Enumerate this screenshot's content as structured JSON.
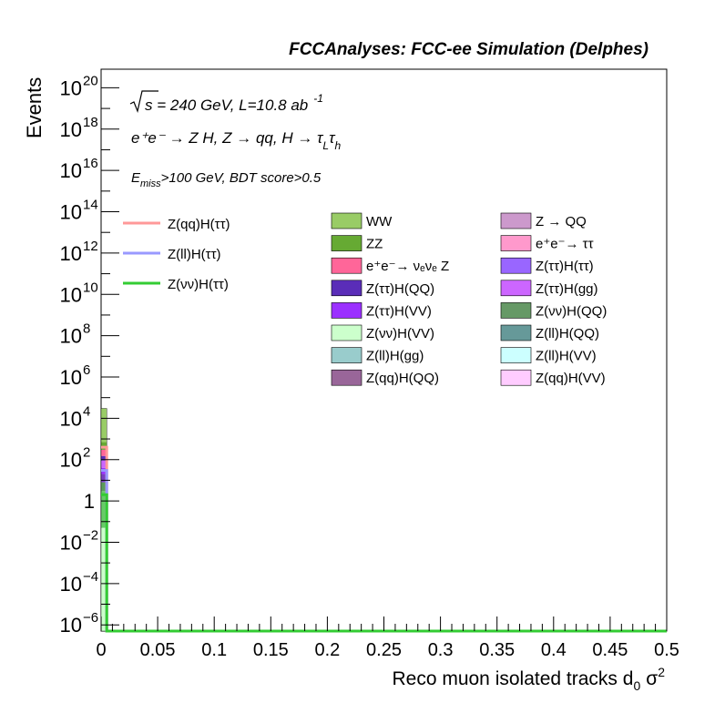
{
  "chart_data": {
    "type": "bar",
    "title": "FCCAnalyses: FCC-ee Simulation (Delphes)",
    "xlabel": "Reco muon isolated tracks d",
    "xlabel_sub": "0",
    "xlabel_tail": "σ",
    "xlabel_sup": "2",
    "ylabel": "Events",
    "xlim": [
      0,
      0.5
    ],
    "ylim_log10": [
      -6.3,
      20.9
    ],
    "y_scale": "log",
    "x_ticks": [
      "0",
      "0.05",
      "0.1",
      "0.15",
      "0.2",
      "0.25",
      "0.3",
      "0.35",
      "0.4",
      "0.45",
      "0.5"
    ],
    "y_ticks": [
      {
        "exp": -6,
        "base": "10",
        "sup": "−6"
      },
      {
        "exp": -4,
        "base": "10",
        "sup": "−4"
      },
      {
        "exp": -2,
        "base": "10",
        "sup": "−2"
      },
      {
        "exp": 0,
        "base": "1",
        "sup": ""
      },
      {
        "exp": 2,
        "base": "10",
        "sup": "2"
      },
      {
        "exp": 4,
        "base": "10",
        "sup": "4"
      },
      {
        "exp": 6,
        "base": "10",
        "sup": "6"
      },
      {
        "exp": 8,
        "base": "10",
        "sup": "8"
      },
      {
        "exp": 10,
        "base": "10",
        "sup": "10"
      },
      {
        "exp": 12,
        "base": "10",
        "sup": "12"
      },
      {
        "exp": 14,
        "base": "10",
        "sup": "14"
      },
      {
        "exp": 16,
        "base": "10",
        "sup": "16"
      },
      {
        "exp": 18,
        "base": "10",
        "sup": "18"
      },
      {
        "exp": 20,
        "base": "10",
        "sup": "20"
      }
    ],
    "annotations": {
      "sqrt_s": "s",
      "energy_line": " = 240 GeV, L=10.8 ab",
      "lumi_sup": "-1",
      "process_line": "e⁺e⁻ → Z H, Z → qq, H → τ",
      "process_sub1": "L",
      "process_tau2": "τ",
      "process_sub2": "h",
      "selection_E": "E",
      "selection_sub": "miss",
      "selection_rest": ">100 GeV, BDT score>0.5"
    },
    "bin_width": 0.005,
    "stacked_bins": [
      {
        "x": 0.0,
        "total": 30000,
        "segments": [
          {
            "from": 1e-07,
            "to": 0.05,
            "color": "#ccffcc"
          },
          {
            "from": 0.05,
            "to": 3,
            "color": "#66cc66"
          },
          {
            "from": 3,
            "to": 8,
            "color": "#5b9b5b"
          },
          {
            "from": 8,
            "to": 20,
            "color": "#7a3fbf"
          },
          {
            "from": 20,
            "to": 40,
            "color": "#9b30ff"
          },
          {
            "from": 40,
            "to": 90,
            "color": "#cc66ff"
          },
          {
            "from": 90,
            "to": 150,
            "color": "#5a2db8"
          },
          {
            "from": 150,
            "to": 300,
            "color": "#ff6699"
          },
          {
            "from": 300,
            "to": 700,
            "color": "#66aa33"
          },
          {
            "from": 700,
            "to": 30000,
            "color": "#99cc66"
          }
        ]
      }
    ],
    "series": [
      {
        "name": "Z(qq)H(ττ)",
        "kind": "line",
        "color": "#ff9999",
        "x_edges": [
          0,
          0.005,
          0.005,
          0.5
        ],
        "values": [
          400,
          400,
          1e-07,
          1e-07
        ]
      },
      {
        "name": "Z(ll)H(ττ)",
        "kind": "line",
        "color": "#9999ff",
        "x_edges": [
          0,
          0.005,
          0.005,
          0.5
        ],
        "values": [
          30,
          30,
          1e-07,
          1e-07
        ]
      },
      {
        "name": "Z(νν)H(ττ)",
        "kind": "line",
        "color": "#33cc33",
        "x_edges": [
          0,
          0.005,
          0.005,
          0.5
        ],
        "values": [
          2,
          2,
          1e-07,
          1e-07
        ]
      }
    ],
    "legend_lines": [
      {
        "label": "Z(qq)H(ττ)",
        "color": "#ff9999"
      },
      {
        "label": "Z(ll)H(ττ)",
        "color": "#9999ff"
      },
      {
        "label": "Z(νν)H(ττ)",
        "color": "#33cc33"
      }
    ],
    "legend_boxes": [
      {
        "label": "WW",
        "color": "#99cc66"
      },
      {
        "label": "Z → QQ",
        "color": "#cc99cc"
      },
      {
        "label": "ZZ",
        "color": "#66aa33"
      },
      {
        "label": "e⁺e⁻→ ττ",
        "color": "#ff99cc"
      },
      {
        "label": "e⁺e⁻→ νₑνₑ Z",
        "color": "#ff6699"
      },
      {
        "label": "Z(ττ)H(ττ)",
        "color": "#9966ff"
      },
      {
        "label": "Z(ττ)H(QQ)",
        "color": "#5a2db8"
      },
      {
        "label": "Z(ττ)H(gg)",
        "color": "#cc66ff"
      },
      {
        "label": "Z(ττ)H(VV)",
        "color": "#9b30ff"
      },
      {
        "label": "Z(νν)H(QQ)",
        "color": "#669966"
      },
      {
        "label": "Z(νν)H(VV)",
        "color": "#ccffcc"
      },
      {
        "label": "Z(ll)H(QQ)",
        "color": "#669999"
      },
      {
        "label": "Z(ll)H(gg)",
        "color": "#99cccc"
      },
      {
        "label": "Z(ll)H(VV)",
        "color": "#ccffff"
      },
      {
        "label": "Z(qq)H(QQ)",
        "color": "#996699"
      },
      {
        "label": "Z(qq)H(VV)",
        "color": "#ffccff"
      }
    ],
    "legend_placement": "top",
    "grid": false
  }
}
